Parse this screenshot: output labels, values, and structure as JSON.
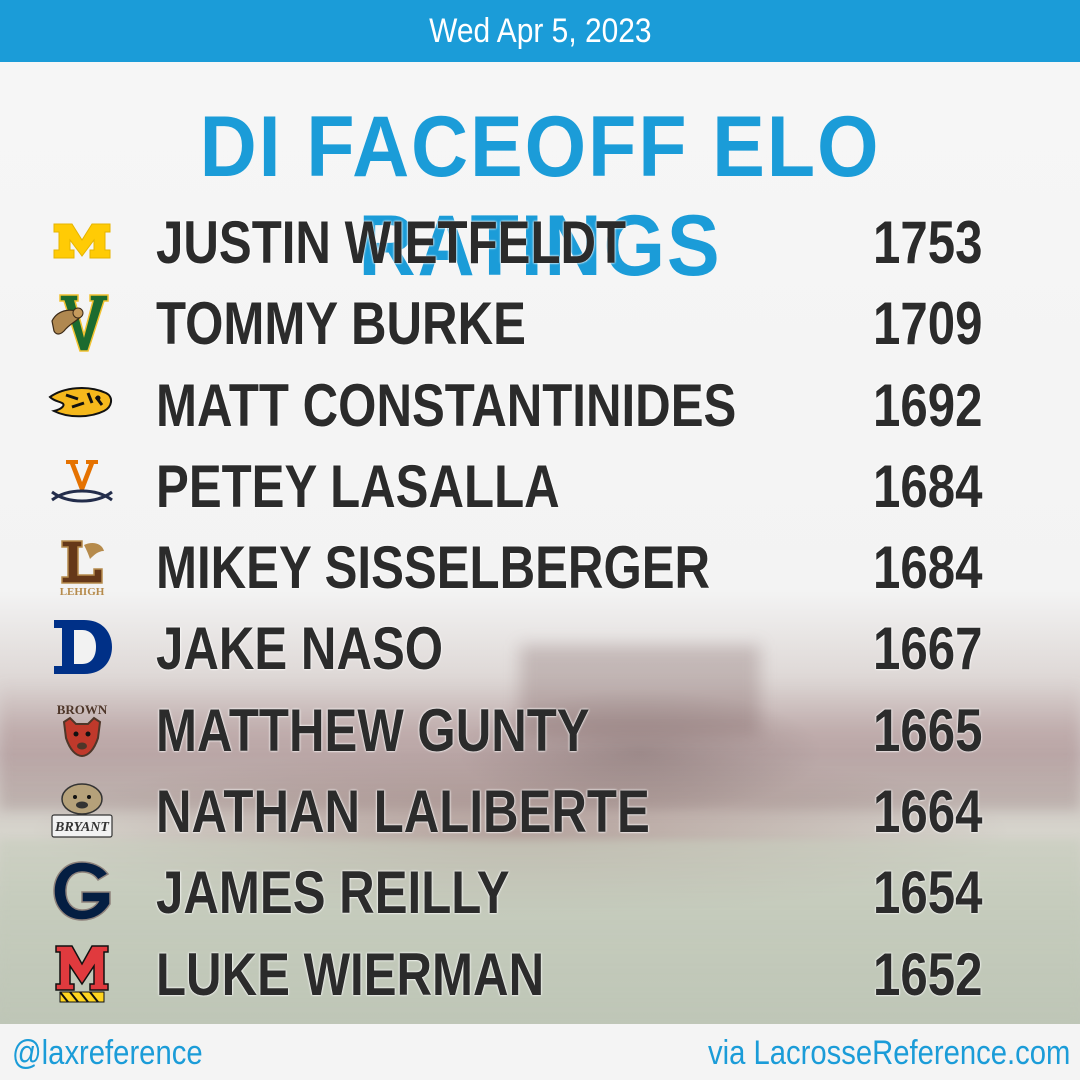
{
  "header": {
    "date": "Wed Apr 5, 2023"
  },
  "title": "DI FACEOFF ELO RATINGS",
  "rankings": [
    {
      "name": "JUSTIN WIETFELDT",
      "rating": "1753",
      "logo": "michigan-logo-icon"
    },
    {
      "name": "TOMMY BURKE",
      "rating": "1709",
      "logo": "vermont-logo-icon"
    },
    {
      "name": "MATT CONSTANTINIDES",
      "rating": "1692",
      "logo": "towson-logo-icon"
    },
    {
      "name": "PETEY LASALLA",
      "rating": "1684",
      "logo": "virginia-logo-icon"
    },
    {
      "name": "MIKEY SISSELBERGER",
      "rating": "1684",
      "logo": "lehigh-logo-icon"
    },
    {
      "name": "JAKE NASO",
      "rating": "1667",
      "logo": "duke-logo-icon"
    },
    {
      "name": "MATTHEW GUNTY",
      "rating": "1665",
      "logo": "brown-logo-icon"
    },
    {
      "name": "NATHAN LALIBERTE",
      "rating": "1664",
      "logo": "bryant-logo-icon"
    },
    {
      "name": "JAMES REILLY",
      "rating": "1654",
      "logo": "georgetown-logo-icon"
    },
    {
      "name": "LUKE WIERMAN",
      "rating": "1652",
      "logo": "maryland-logo-icon"
    }
  ],
  "logo_text": {
    "lehigh": "LEHIGH",
    "brown": "BROWN",
    "bryant": "BRYANT"
  },
  "footer": {
    "handle": "@laxreference",
    "site": "via LacrosseReference.com"
  },
  "colors": {
    "accent": "#1b9cd8",
    "text": "#2b2b2b"
  }
}
